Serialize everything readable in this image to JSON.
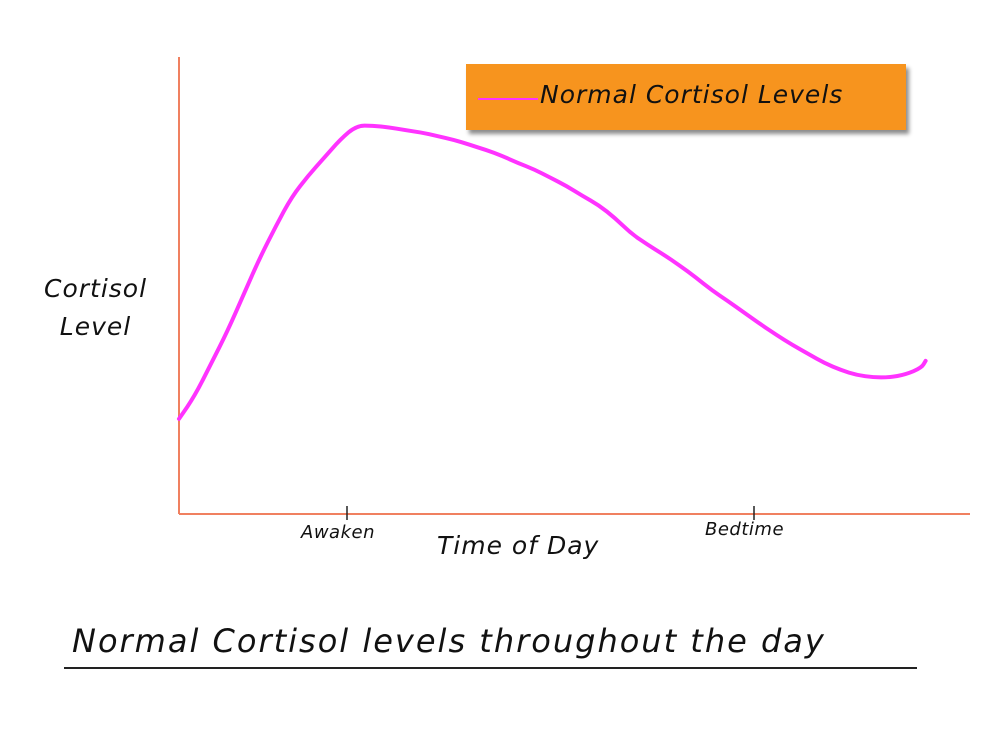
{
  "chart_data": {
    "type": "line",
    "title": "Normal Cortisol levels throughout the day",
    "xlabel": "Time of Day",
    "ylabel": [
      "Cortisol",
      "Level"
    ],
    "tick_labels": [
      "Awaken",
      "Bedtime"
    ],
    "legend": {
      "position": "top-right",
      "entries": [
        "Normal Cortisol Levels"
      ]
    },
    "axis_units_printed": false,
    "grid": false,
    "series": [
      {
        "name": "Normal Cortisol Levels",
        "color": "#ff33ff",
        "points": [
          [
            0,
            20.8
          ],
          [
            2,
            26
          ],
          [
            4,
            33
          ],
          [
            6,
            40
          ],
          [
            8,
            48
          ],
          [
            10,
            56
          ],
          [
            12,
            63
          ],
          [
            14,
            69.5
          ],
          [
            16,
            74
          ],
          [
            18,
            78
          ],
          [
            20,
            82
          ],
          [
            22,
            85
          ],
          [
            24,
            85
          ],
          [
            26,
            84.6
          ],
          [
            28,
            84
          ],
          [
            30,
            83.5
          ],
          [
            32,
            82.7
          ],
          [
            34,
            81.9
          ],
          [
            36,
            80.8
          ],
          [
            38,
            79.7
          ],
          [
            40,
            78.4
          ],
          [
            42,
            76.8
          ],
          [
            44,
            75.4
          ],
          [
            46,
            73.6
          ],
          [
            48,
            71.8
          ],
          [
            50,
            69.6
          ],
          [
            52,
            67.6
          ],
          [
            54,
            64.8
          ],
          [
            56,
            61.4
          ],
          [
            58,
            59
          ],
          [
            60,
            56.8
          ],
          [
            62,
            54.4
          ],
          [
            64,
            51.8
          ],
          [
            66,
            49
          ],
          [
            68,
            46.6
          ],
          [
            70,
            44.1
          ],
          [
            72,
            41.6
          ],
          [
            74,
            39.2
          ],
          [
            76,
            37
          ],
          [
            78,
            35
          ],
          [
            80,
            33
          ],
          [
            82,
            31.5
          ],
          [
            84,
            30.4
          ],
          [
            86,
            29.9
          ],
          [
            88,
            29.9
          ],
          [
            90,
            30.5
          ],
          [
            92,
            32
          ],
          [
            92.5,
            33.5
          ]
        ]
      }
    ],
    "xlim": [
      0,
      98
    ],
    "ylim": [
      0,
      100
    ]
  },
  "colors": {
    "axis": "#f08060",
    "line": "#ff33ff",
    "legend_bg": "#f7941e",
    "text": "#111111"
  }
}
